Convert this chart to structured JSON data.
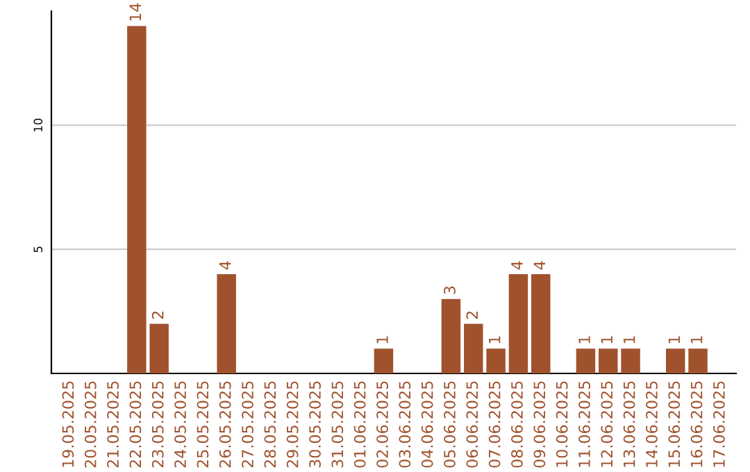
{
  "chart_data": {
    "type": "bar",
    "categories": [
      "19.05.2025",
      "20.05.2025",
      "21.05.2025",
      "22.05.2025",
      "23.05.2025",
      "24.05.2025",
      "25.05.2025",
      "26.05.2025",
      "27.05.2025",
      "28.05.2025",
      "29.05.2025",
      "30.05.2025",
      "31.05.2025",
      "01.06.2025",
      "02.06.2025",
      "03.06.2025",
      "04.06.2025",
      "05.06.2025",
      "06.06.2025",
      "07.06.2025",
      "08.06.2025",
      "09.06.2025",
      "10.06.2025",
      "11.06.2025",
      "12.06.2025",
      "13.06.2025",
      "14.06.2025",
      "15.06.2025",
      "16.06.2025",
      "17.06.2025"
    ],
    "values": [
      null,
      null,
      null,
      14,
      2,
      null,
      null,
      4,
      null,
      null,
      null,
      null,
      null,
      null,
      1,
      null,
      null,
      3,
      2,
      1,
      4,
      4,
      null,
      1,
      1,
      1,
      null,
      1,
      1,
      null
    ],
    "color": "#a0522d",
    "ylim": [
      0,
      14.6
    ],
    "yticks": [
      5,
      10
    ],
    "grid": "y",
    "data_labels": true
  }
}
